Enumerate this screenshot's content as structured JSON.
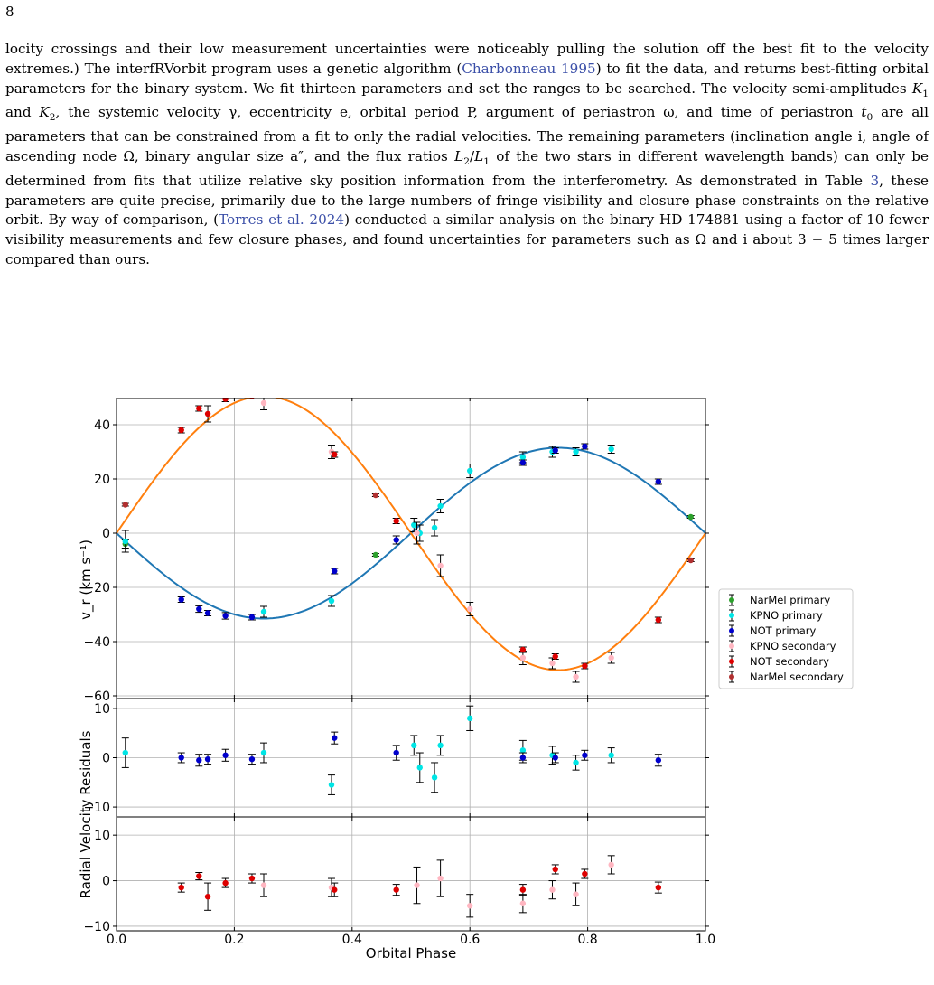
{
  "page_number": "8",
  "paragraph": {
    "s1": "locity crossings and their low measurement uncertainties were noticeably pulling the solution off the best fit to the velocity extremes.) The interfRVorbit program uses a genetic algorithm (",
    "cite1": "Charbonneau 1995",
    "s2": ") to fit the data, and returns best-fitting orbital parameters for the binary system. We fit thirteen parameters and set the ranges to be searched. The velocity semi-amplitudes ",
    "s3": ", the systemic velocity γ, eccentricity e, orbital period P, argument of periastron ω, and time of periastron ",
    "s4": " are all parameters that can be constrained from a fit to only the radial velocities. The remaining parameters (inclination angle i, angle of ascending node Ω, binary angular size a″, and the flux ratios ",
    "s5": " of the two stars in different wavelength bands) can only be determined from fits that utilize relative sky position information from the interferometry. As demonstrated in Table ",
    "table_ref": "3",
    "s6": ", these parameters are quite precise, primarily due to the large numbers of fringe visibility and closure phase constraints on the relative orbit. By way of comparison, (",
    "cite2": "Torres et al. 2024",
    "s7": ") conducted a similar analysis on the binary HD 174881 using a factor of 10 fewer visibility measurements and few closure phases, and found uncertainties for parameters such as Ω and i about 3 − 5 times larger compared than ours."
  },
  "chart_data": [
    {
      "type": "scatter",
      "panel": "radial-velocity",
      "ylabel": "v_r (km s⁻¹)",
      "xlim": [
        0.0,
        1.0
      ],
      "ylim": [
        -61,
        50
      ],
      "yticks": [
        "40",
        "20",
        "0",
        "−20",
        "−40",
        "−60"
      ],
      "ytick_values": [
        40,
        20,
        0,
        -20,
        -40,
        -60
      ],
      "grid": true,
      "legend_position": "outside-right",
      "curves": [
        {
          "component": "primary",
          "color": "#1f77b4",
          "K": 31.5,
          "phase_offset": 0.0
        },
        {
          "component": "secondary",
          "color": "#ff7f0e",
          "K": 50.5,
          "phase_offset": 0.0
        }
      ],
      "series": [
        {
          "name": "NarMel primary",
          "color": "#2ca02c",
          "points": [
            [
              0.015,
              -4,
              1.5
            ],
            [
              0.44,
              -8,
              0.5
            ],
            [
              0.975,
              6,
              0.5
            ]
          ]
        },
        {
          "name": "KPNO primary",
          "color": "#00e5e5",
          "points": [
            [
              0.015,
              -3,
              4
            ],
            [
              0.25,
              -29,
              2
            ],
            [
              0.365,
              -25,
              2
            ],
            [
              0.505,
              3,
              2.5
            ],
            [
              0.515,
              0,
              3
            ],
            [
              0.54,
              2,
              3
            ],
            [
              0.55,
              10,
              2.5
            ],
            [
              0.6,
              23,
              2.5
            ],
            [
              0.69,
              28,
              2
            ],
            [
              0.74,
              30,
              2
            ],
            [
              0.78,
              30,
              1.5
            ],
            [
              0.84,
              31,
              1.5
            ]
          ]
        },
        {
          "name": "NOT primary",
          "color": "#0000cc",
          "points": [
            [
              0.11,
              -24.5,
              1
            ],
            [
              0.14,
              -28,
              1.2
            ],
            [
              0.155,
              -29.5,
              1
            ],
            [
              0.185,
              -30.5,
              1.2
            ],
            [
              0.23,
              -31,
              1
            ],
            [
              0.37,
              -14,
              1
            ],
            [
              0.475,
              -2.5,
              1.5
            ],
            [
              0.69,
              26,
              1
            ],
            [
              0.745,
              30.5,
              1
            ],
            [
              0.795,
              32,
              1
            ],
            [
              0.92,
              19,
              1
            ]
          ]
        },
        {
          "name": "KPNO secondary",
          "color": "#ffb6c1",
          "points": [
            [
              0.25,
              48,
              2.5
            ],
            [
              0.365,
              30,
              2.5
            ],
            [
              0.51,
              0,
              4
            ],
            [
              0.55,
              -12,
              4
            ],
            [
              0.6,
              -28,
              2.5
            ],
            [
              0.69,
              -46,
              2.5
            ],
            [
              0.74,
              -48,
              2
            ],
            [
              0.78,
              -53,
              2
            ],
            [
              0.84,
              -46,
              2
            ]
          ]
        },
        {
          "name": "NOT secondary",
          "color": "#dd0000",
          "points": [
            [
              0.11,
              38,
              1
            ],
            [
              0.14,
              46,
              1
            ],
            [
              0.155,
              44,
              3
            ],
            [
              0.185,
              49.5,
              1
            ],
            [
              0.23,
              50.5,
              1
            ],
            [
              0.37,
              29,
              1
            ],
            [
              0.475,
              4.5,
              1
            ],
            [
              0.69,
              -43,
              1
            ],
            [
              0.745,
              -45.5,
              1
            ],
            [
              0.795,
              -49,
              1
            ],
            [
              0.92,
              -32,
              1
            ]
          ]
        },
        {
          "name": "NarMel secondary",
          "color": "#b03030",
          "points": [
            [
              0.015,
              10.5,
              0.5
            ],
            [
              0.44,
              14,
              0.5
            ],
            [
              0.975,
              -10,
              0.5
            ]
          ]
        }
      ]
    },
    {
      "type": "scatter",
      "panel": "primary-residuals",
      "xlim": [
        0.0,
        1.0
      ],
      "ylim": [
        -12,
        12
      ],
      "yticks": [
        "10",
        "0",
        "−10"
      ],
      "ytick_values": [
        10,
        0,
        -10
      ],
      "grid": true,
      "series": [
        {
          "name": "KPNO primary",
          "color": "#00e5e5",
          "points": [
            [
              0.015,
              1,
              3
            ],
            [
              0.25,
              1,
              2
            ],
            [
              0.365,
              -5.5,
              2
            ],
            [
              0.505,
              2.5,
              2
            ],
            [
              0.515,
              -2,
              3
            ],
            [
              0.54,
              -4,
              3
            ],
            [
              0.55,
              2.5,
              2
            ],
            [
              0.6,
              8,
              2.5
            ],
            [
              0.69,
              1.5,
              2
            ],
            [
              0.74,
              0.5,
              1.8
            ],
            [
              0.78,
              -1,
              1.5
            ],
            [
              0.84,
              0.5,
              1.5
            ]
          ]
        },
        {
          "name": "NOT primary",
          "color": "#0000cc",
          "points": [
            [
              0.11,
              0,
              1
            ],
            [
              0.14,
              -0.5,
              1.2
            ],
            [
              0.155,
              -0.3,
              1
            ],
            [
              0.185,
              0.5,
              1.2
            ],
            [
              0.23,
              -0.3,
              1
            ],
            [
              0.37,
              4,
              1.2
            ],
            [
              0.475,
              1,
              1.5
            ],
            [
              0.69,
              0,
              1
            ],
            [
              0.745,
              0,
              1
            ],
            [
              0.795,
              0.5,
              1
            ],
            [
              0.92,
              -0.5,
              1.2
            ]
          ]
        }
      ]
    },
    {
      "type": "scatter",
      "panel": "secondary-residuals",
      "xlabel": "Orbital Phase",
      "xticks": [
        "0.0",
        "0.2",
        "0.4",
        "0.6",
        "0.8",
        "1.0"
      ],
      "xtick_values": [
        0.0,
        0.2,
        0.4,
        0.6,
        0.8,
        1.0
      ],
      "xlim": [
        0.0,
        1.0
      ],
      "ylim": [
        -11,
        14
      ],
      "yticks": [
        "10",
        "0",
        "−10"
      ],
      "ytick_values": [
        10,
        0,
        -10
      ],
      "grid": true,
      "series": [
        {
          "name": "KPNO secondary",
          "color": "#ffb6c1",
          "points": [
            [
              0.25,
              -1,
              2.5
            ],
            [
              0.365,
              -1.5,
              2
            ],
            [
              0.51,
              -1,
              4
            ],
            [
              0.55,
              0.5,
              4
            ],
            [
              0.6,
              -5.5,
              2.5
            ],
            [
              0.69,
              -5,
              2
            ],
            [
              0.74,
              -2,
              2
            ],
            [
              0.78,
              -3,
              2.5
            ],
            [
              0.84,
              3.5,
              2
            ]
          ]
        },
        {
          "name": "NOT secondary",
          "color": "#dd0000",
          "points": [
            [
              0.11,
              -1.5,
              1
            ],
            [
              0.14,
              1,
              0.8
            ],
            [
              0.155,
              -3.5,
              3
            ],
            [
              0.185,
              -0.5,
              1
            ],
            [
              0.23,
              0.5,
              1
            ],
            [
              0.37,
              -2,
              1.5
            ],
            [
              0.475,
              -2,
              1.2
            ],
            [
              0.69,
              -2,
              1.2
            ],
            [
              0.745,
              2.5,
              1
            ],
            [
              0.795,
              1.5,
              1
            ],
            [
              0.92,
              -1.5,
              1.2
            ]
          ]
        }
      ]
    }
  ],
  "shared_ylabel": "Radial Velocity Residuals"
}
